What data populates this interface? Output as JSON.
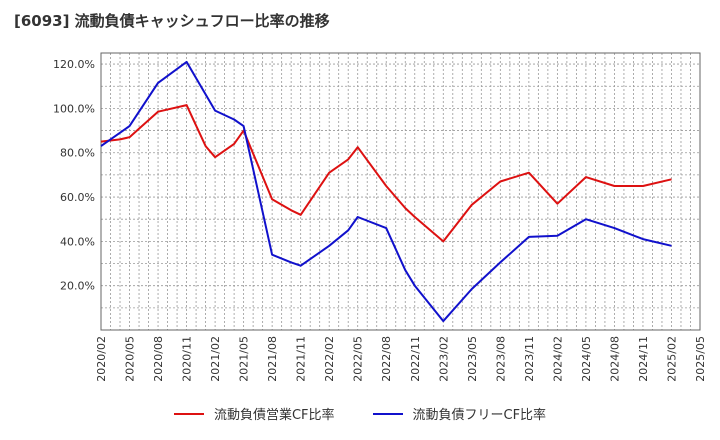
{
  "title": "[6093]  流動負債キャッシュフロー比率の推移",
  "chart_data": {
    "type": "line",
    "title": "[6093]  流動負債キャッシュフロー比率の推移",
    "xlabel": "",
    "ylabel": "",
    "x": [
      "2020/02",
      "2020/05",
      "2020/08",
      "2020/11",
      "2021/02",
      "2021/05",
      "2021/08",
      "2021/11",
      "2022/02",
      "2022/05",
      "2022/08",
      "2022/11",
      "2023/02",
      "2023/05",
      "2023/08",
      "2023/11",
      "2024/02",
      "2024/05",
      "2024/08",
      "2024/11",
      "2025/02",
      "2025/05"
    ],
    "y_ticks": [
      "20.0%",
      "40.0%",
      "60.0%",
      "80.0%",
      "100.0%",
      "120.0%"
    ],
    "ylim": [
      0,
      125
    ],
    "grid": true,
    "legend_position": "bottom",
    "series": [
      {
        "name": "流動負債営業CF比率",
        "color": "#dd1111",
        "points": [
          [
            "2020/02",
            85
          ],
          [
            "2020/04",
            86
          ],
          [
            "2020/05",
            87
          ],
          [
            "2020/08",
            98.5
          ],
          [
            "2020/11",
            101.5
          ],
          [
            "2021/01",
            83
          ],
          [
            "2021/02",
            78
          ],
          [
            "2021/04",
            84
          ],
          [
            "2021/05",
            90
          ],
          [
            "2021/08",
            59
          ],
          [
            "2021/10",
            54
          ],
          [
            "2021/11",
            52
          ],
          [
            "2022/02",
            71
          ],
          [
            "2022/04",
            77
          ],
          [
            "2022/05",
            82.5
          ],
          [
            "2022/08",
            65
          ],
          [
            "2022/10",
            55
          ],
          [
            "2022/11",
            51
          ],
          [
            "2023/02",
            40
          ],
          [
            "2023/05",
            56.5
          ],
          [
            "2023/08",
            67
          ],
          [
            "2023/11",
            71
          ],
          [
            "2024/02",
            57
          ],
          [
            "2024/05",
            69
          ],
          [
            "2024/08",
            65
          ],
          [
            "2024/11",
            65
          ],
          [
            "2025/02",
            68
          ]
        ]
      },
      {
        "name": "流動負債フリーCF比率",
        "color": "#1111cc",
        "points": [
          [
            "2020/02",
            83
          ],
          [
            "2020/05",
            92
          ],
          [
            "2020/08",
            111.5
          ],
          [
            "2020/11",
            121
          ],
          [
            "2021/02",
            99
          ],
          [
            "2021/04",
            95
          ],
          [
            "2021/05",
            92
          ],
          [
            "2021/08",
            34
          ],
          [
            "2021/10",
            30.5
          ],
          [
            "2021/11",
            29
          ],
          [
            "2022/02",
            38
          ],
          [
            "2022/04",
            45
          ],
          [
            "2022/05",
            51
          ],
          [
            "2022/08",
            46
          ],
          [
            "2022/10",
            27
          ],
          [
            "2022/11",
            20
          ],
          [
            "2023/02",
            4
          ],
          [
            "2023/05",
            18.5
          ],
          [
            "2023/08",
            30.5
          ],
          [
            "2023/11",
            42
          ],
          [
            "2024/02",
            42.5
          ],
          [
            "2024/05",
            50
          ],
          [
            "2024/08",
            46
          ],
          [
            "2024/11",
            41
          ],
          [
            "2025/02",
            38
          ]
        ]
      }
    ]
  }
}
